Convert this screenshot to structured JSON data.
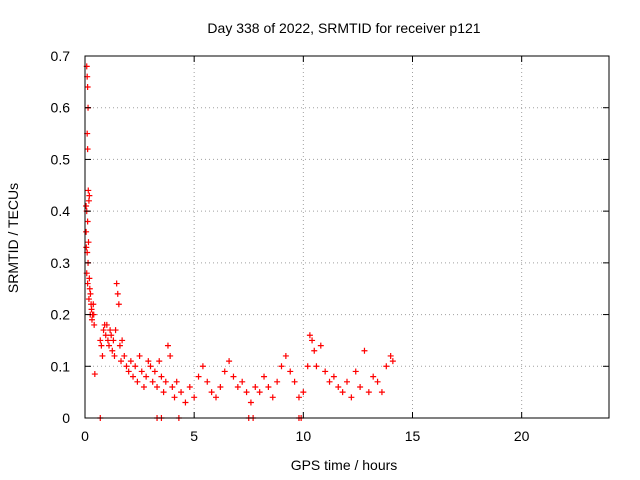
{
  "chart_data": {
    "type": "scatter",
    "title": "Day 338 of 2022, SRMTID for receiver p121",
    "xlabel": "GPS time / hours",
    "ylabel": "SRMTID / TECUs",
    "xlim": [
      0,
      24
    ],
    "ylim": [
      0,
      0.7
    ],
    "xticks": [
      0,
      5,
      10,
      15,
      20
    ],
    "yticks": [
      0,
      0.1,
      0.2,
      0.3,
      0.4,
      0.5,
      0.6,
      0.7
    ],
    "xtick_labels": [
      "0",
      "5",
      "10",
      "15",
      "20"
    ],
    "ytick_labels": [
      "0",
      "0.1",
      "0.2",
      "0.3",
      "0.4",
      "0.5",
      "0.6",
      "0.7"
    ],
    "grid": true,
    "marker": "+",
    "color": "#ff0000",
    "series": [
      {
        "name": "SRMTID",
        "points": [
          [
            0.05,
            0.36
          ],
          [
            0.08,
            0.68
          ],
          [
            0.1,
            0.66
          ],
          [
            0.12,
            0.64
          ],
          [
            0.14,
            0.6
          ],
          [
            0.1,
            0.55
          ],
          [
            0.12,
            0.52
          ],
          [
            0.15,
            0.44
          ],
          [
            0.2,
            0.43
          ],
          [
            0.18,
            0.42
          ],
          [
            0.05,
            0.41
          ],
          [
            0.08,
            0.4
          ],
          [
            0.12,
            0.38
          ],
          [
            0.16,
            0.34
          ],
          [
            0.06,
            0.33
          ],
          [
            0.1,
            0.32
          ],
          [
            0.14,
            0.3
          ],
          [
            0.08,
            0.28
          ],
          [
            0.12,
            0.26
          ],
          [
            0.2,
            0.27
          ],
          [
            0.22,
            0.25
          ],
          [
            0.25,
            0.24
          ],
          [
            0.18,
            0.23
          ],
          [
            0.28,
            0.22
          ],
          [
            0.3,
            0.21
          ],
          [
            0.24,
            0.2
          ],
          [
            0.32,
            0.19
          ],
          [
            0.35,
            0.2
          ],
          [
            0.38,
            0.22
          ],
          [
            0.4,
            0.2
          ],
          [
            0.42,
            0.18
          ],
          [
            0.45,
            0.085
          ],
          [
            0.7,
            0.15
          ],
          [
            0.75,
            0.14
          ],
          [
            0.8,
            0.12
          ],
          [
            0.85,
            0.17
          ],
          [
            0.9,
            0.18
          ],
          [
            0.95,
            0.16
          ],
          [
            1.0,
            0.18
          ],
          [
            1.05,
            0.15
          ],
          [
            1.1,
            0.14
          ],
          [
            1.15,
            0.17
          ],
          [
            1.2,
            0.16
          ],
          [
            1.25,
            0.13
          ],
          [
            1.3,
            0.15
          ],
          [
            1.35,
            0.12
          ],
          [
            1.4,
            0.17
          ],
          [
            1.45,
            0.26
          ],
          [
            1.5,
            0.24
          ],
          [
            1.55,
            0.22
          ],
          [
            1.6,
            0.14
          ],
          [
            1.65,
            0.11
          ],
          [
            1.7,
            0.15
          ],
          [
            1.8,
            0.12
          ],
          [
            1.9,
            0.1
          ],
          [
            2.0,
            0.09
          ],
          [
            2.1,
            0.11
          ],
          [
            2.2,
            0.08
          ],
          [
            2.3,
            0.1
          ],
          [
            2.4,
            0.07
          ],
          [
            2.5,
            0.12
          ],
          [
            2.6,
            0.09
          ],
          [
            2.7,
            0.06
          ],
          [
            2.8,
            0.08
          ],
          [
            2.9,
            0.11
          ],
          [
            3.0,
            0.1
          ],
          [
            3.1,
            0.07
          ],
          [
            3.2,
            0.09
          ],
          [
            3.3,
            0.06
          ],
          [
            3.4,
            0.11
          ],
          [
            3.5,
            0.08
          ],
          [
            3.6,
            0.05
          ],
          [
            3.7,
            0.07
          ],
          [
            3.8,
            0.14
          ],
          [
            3.9,
            0.12
          ],
          [
            4.0,
            0.06
          ],
          [
            4.1,
            0.04
          ],
          [
            4.2,
            0.07
          ],
          [
            4.4,
            0.05
          ],
          [
            4.6,
            0.03
          ],
          [
            4.8,
            0.06
          ],
          [
            5.0,
            0.04
          ],
          [
            5.2,
            0.08
          ],
          [
            5.4,
            0.1
          ],
          [
            5.6,
            0.07
          ],
          [
            5.8,
            0.05
          ],
          [
            6.0,
            0.04
          ],
          [
            6.2,
            0.06
          ],
          [
            6.4,
            0.09
          ],
          [
            6.6,
            0.11
          ],
          [
            6.8,
            0.08
          ],
          [
            7.0,
            0.06
          ],
          [
            7.2,
            0.07
          ],
          [
            7.4,
            0.05
          ],
          [
            7.6,
            0.03
          ],
          [
            7.8,
            0.06
          ],
          [
            8.0,
            0.05
          ],
          [
            8.2,
            0.08
          ],
          [
            8.4,
            0.06
          ],
          [
            8.6,
            0.04
          ],
          [
            8.8,
            0.07
          ],
          [
            9.0,
            0.1
          ],
          [
            9.2,
            0.12
          ],
          [
            9.4,
            0.09
          ],
          [
            9.6,
            0.07
          ],
          [
            9.8,
            0.04
          ],
          [
            10.0,
            0.05
          ],
          [
            10.2,
            0.1
          ],
          [
            10.3,
            0.16
          ],
          [
            10.4,
            0.15
          ],
          [
            10.5,
            0.13
          ],
          [
            10.6,
            0.1
          ],
          [
            10.8,
            0.14
          ],
          [
            11.0,
            0.09
          ],
          [
            11.2,
            0.07
          ],
          [
            11.4,
            0.08
          ],
          [
            11.6,
            0.06
          ],
          [
            11.8,
            0.05
          ],
          [
            12.0,
            0.07
          ],
          [
            12.2,
            0.04
          ],
          [
            12.4,
            0.09
          ],
          [
            12.6,
            0.06
          ],
          [
            12.8,
            0.13
          ],
          [
            13.0,
            0.05
          ],
          [
            13.2,
            0.08
          ],
          [
            13.4,
            0.07
          ],
          [
            13.6,
            0.05
          ],
          [
            13.8,
            0.1
          ],
          [
            14.0,
            0.12
          ],
          [
            14.1,
            0.11
          ],
          [
            0.7,
            0.0
          ],
          [
            3.3,
            0.0
          ],
          [
            3.5,
            0.0
          ],
          [
            4.3,
            0.0
          ],
          [
            7.5,
            0.0
          ],
          [
            7.7,
            0.0
          ],
          [
            9.8,
            0.0
          ],
          [
            9.9,
            0.0
          ]
        ]
      }
    ]
  }
}
